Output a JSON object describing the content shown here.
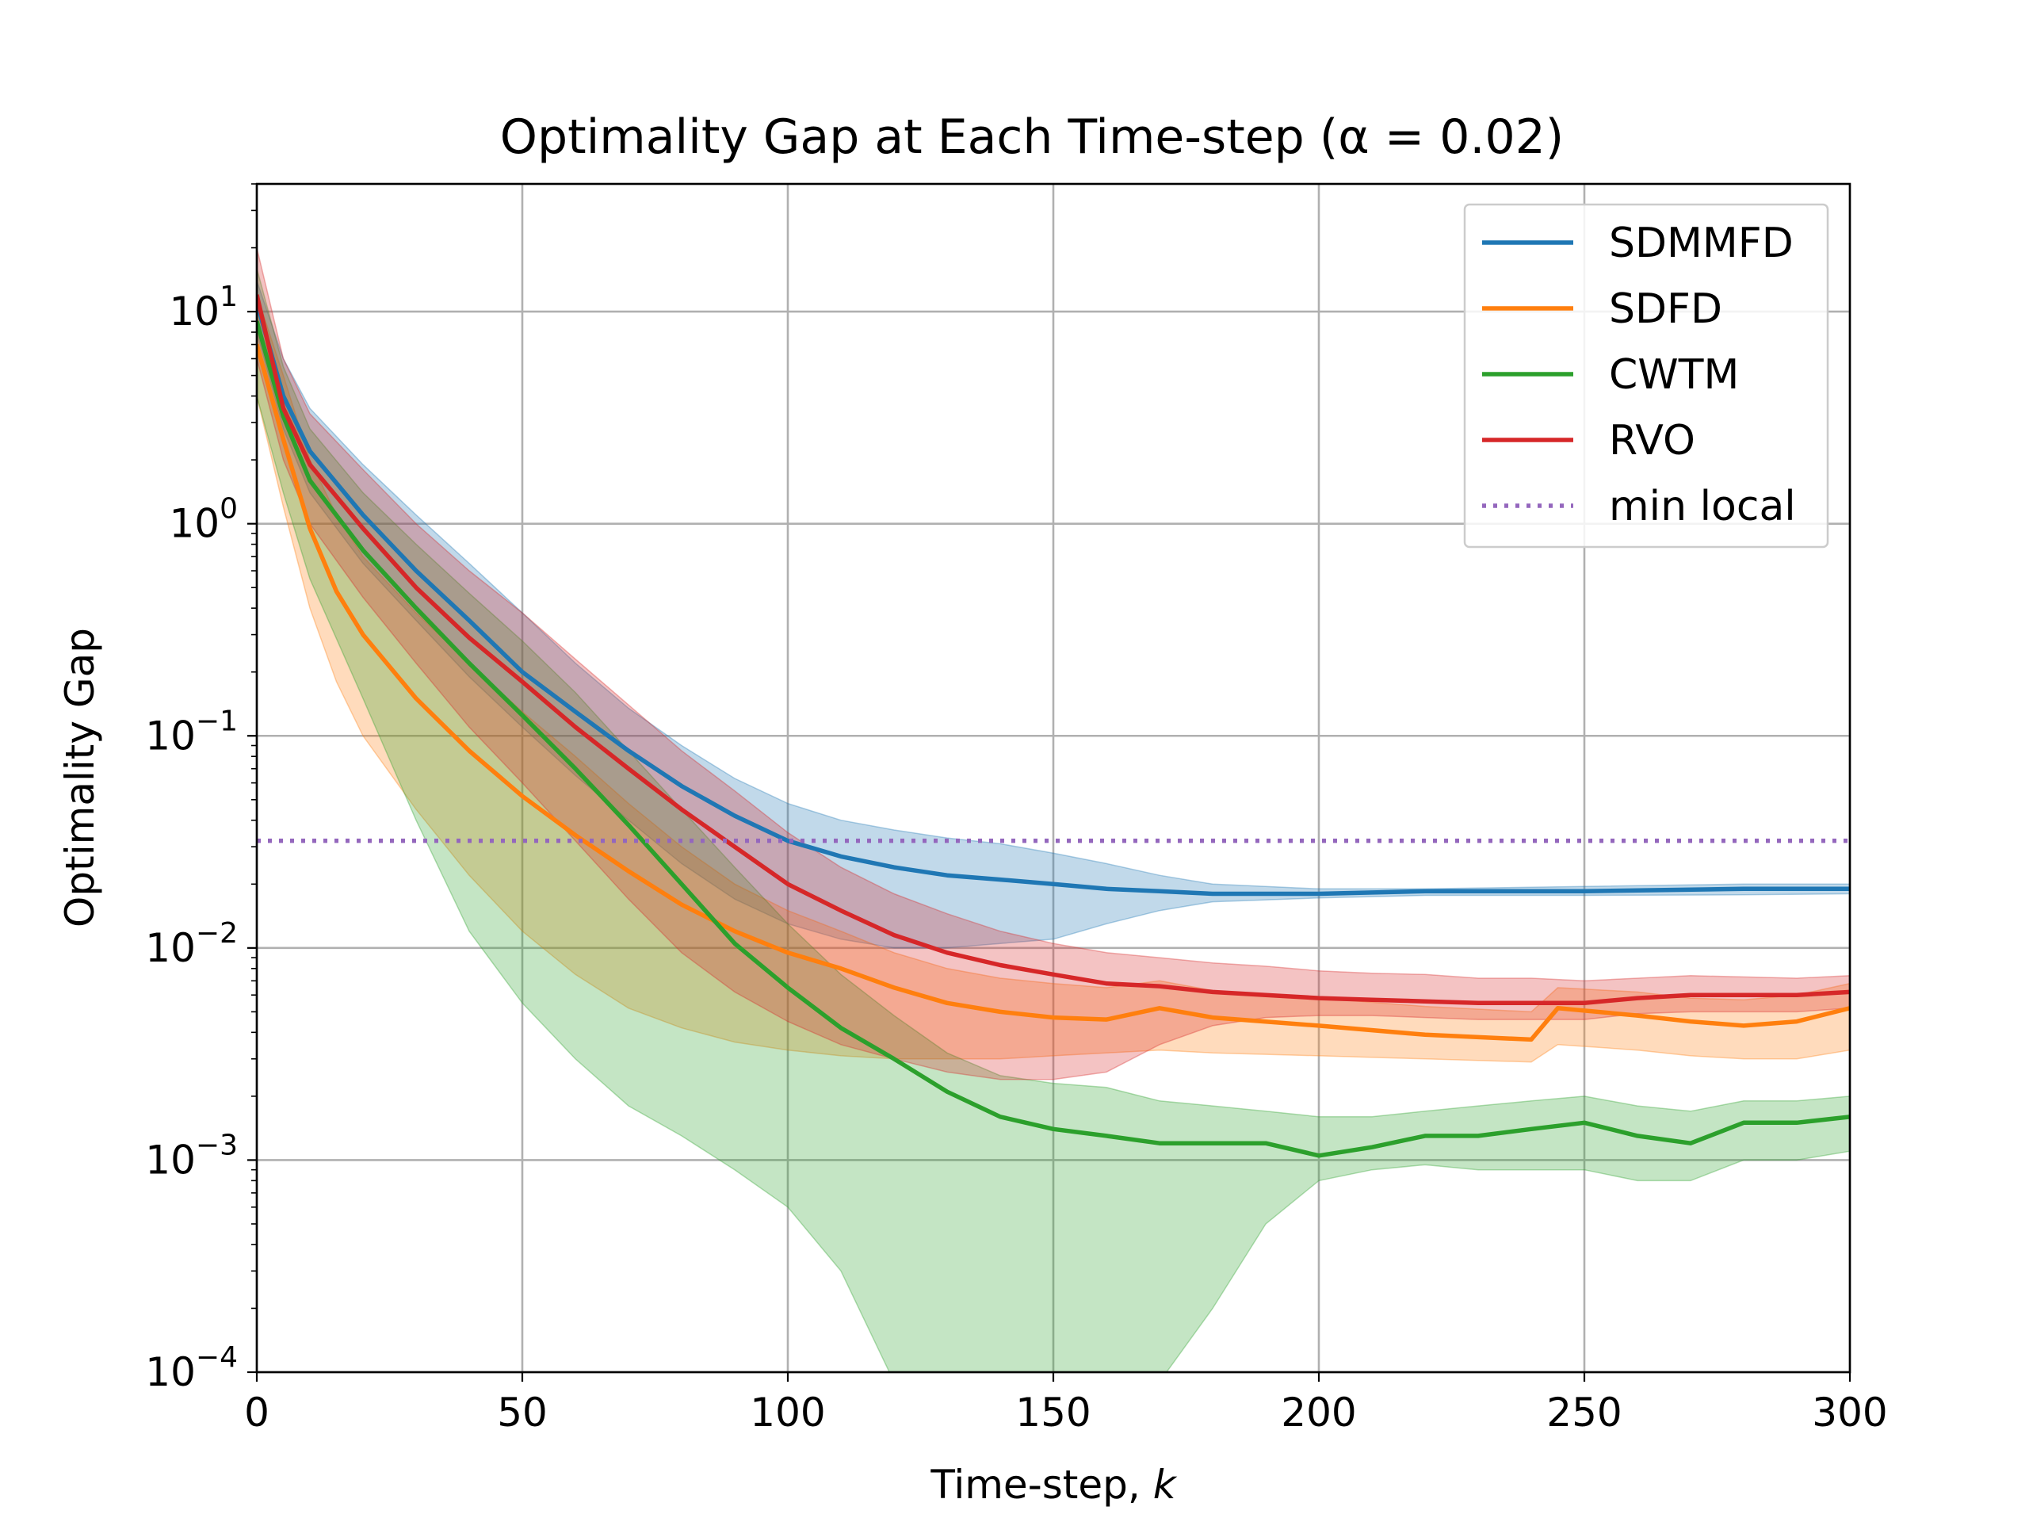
{
  "chart_data": {
    "type": "line",
    "title": "Optimality Gap at Each Time-step (α = 0.02)",
    "xlabel": "Time-step, k",
    "ylabel": "Optimality Gap",
    "xlim": [
      0,
      300
    ],
    "ylim": [
      0.0001,
      40
    ],
    "y_scale": "log",
    "grid": true,
    "legend_position": "top-right",
    "x_ticks": [
      0,
      50,
      100,
      150,
      200,
      250,
      300
    ],
    "y_ticks": [
      0.0001,
      0.001,
      0.01,
      0.1,
      1,
      10
    ],
    "y_tick_labels": [
      {
        "base": "10",
        "exp": "−4"
      },
      {
        "base": "10",
        "exp": "−3"
      },
      {
        "base": "10",
        "exp": "−2"
      },
      {
        "base": "10",
        "exp": "−1"
      },
      {
        "base": "10",
        "exp": "0"
      },
      {
        "base": "10",
        "exp": "1"
      }
    ],
    "series": [
      {
        "name": "SDMMFD",
        "color": "#1f77b4",
        "x": [
          0,
          5,
          10,
          20,
          30,
          40,
          50,
          60,
          70,
          80,
          90,
          100,
          110,
          120,
          130,
          140,
          150,
          160,
          170,
          180,
          200,
          220,
          250,
          280,
          300
        ],
        "mean": [
          11,
          4,
          2.2,
          1.1,
          0.6,
          0.35,
          0.2,
          0.13,
          0.085,
          0.058,
          0.042,
          0.032,
          0.027,
          0.024,
          0.022,
          0.021,
          0.02,
          0.019,
          0.0185,
          0.018,
          0.018,
          0.0185,
          0.0185,
          0.019,
          0.019
        ],
        "upper": [
          14,
          6,
          3.5,
          1.9,
          1.1,
          0.65,
          0.38,
          0.22,
          0.135,
          0.09,
          0.063,
          0.048,
          0.04,
          0.036,
          0.033,
          0.031,
          0.028,
          0.025,
          0.022,
          0.02,
          0.019,
          0.019,
          0.0195,
          0.02,
          0.02
        ],
        "lower": [
          8,
          2.8,
          1.4,
          0.65,
          0.35,
          0.19,
          0.11,
          0.065,
          0.04,
          0.025,
          0.017,
          0.013,
          0.011,
          0.01,
          0.01,
          0.0105,
          0.011,
          0.013,
          0.015,
          0.0165,
          0.0172,
          0.0177,
          0.0177,
          0.0178,
          0.018
        ]
      },
      {
        "name": "SDFD",
        "color": "#ff7f0e",
        "x": [
          0,
          5,
          10,
          15,
          20,
          30,
          40,
          50,
          60,
          70,
          80,
          90,
          100,
          110,
          120,
          130,
          140,
          150,
          160,
          170,
          180,
          200,
          220,
          240,
          245,
          260,
          270,
          280,
          290,
          300
        ],
        "mean": [
          7,
          2.5,
          0.95,
          0.48,
          0.3,
          0.15,
          0.085,
          0.052,
          0.034,
          0.023,
          0.016,
          0.012,
          0.0095,
          0.008,
          0.0065,
          0.0055,
          0.005,
          0.0047,
          0.0046,
          0.0052,
          0.0047,
          0.0043,
          0.0039,
          0.0037,
          0.0052,
          0.0048,
          0.0045,
          0.0043,
          0.0045,
          0.0052
        ],
        "upper": [
          12,
          5,
          2,
          1.1,
          0.7,
          0.38,
          0.22,
          0.13,
          0.08,
          0.048,
          0.03,
          0.02,
          0.015,
          0.012,
          0.0095,
          0.008,
          0.0072,
          0.0068,
          0.0065,
          0.007,
          0.0063,
          0.0058,
          0.0053,
          0.005,
          0.0065,
          0.0062,
          0.0058,
          0.0057,
          0.006,
          0.0068
        ],
        "lower": [
          4,
          1.2,
          0.4,
          0.18,
          0.1,
          0.045,
          0.022,
          0.012,
          0.0075,
          0.0052,
          0.0042,
          0.0036,
          0.0033,
          0.0031,
          0.003,
          0.003,
          0.003,
          0.0031,
          0.0032,
          0.0033,
          0.0032,
          0.0031,
          0.003,
          0.0029,
          0.0035,
          0.0033,
          0.0031,
          0.003,
          0.003,
          0.0033
        ]
      },
      {
        "name": "CWTM",
        "color": "#2ca02c",
        "x": [
          0,
          5,
          10,
          20,
          30,
          40,
          50,
          60,
          70,
          80,
          90,
          100,
          110,
          120,
          130,
          140,
          150,
          160,
          170,
          180,
          190,
          200,
          210,
          220,
          230,
          240,
          250,
          260,
          270,
          280,
          290,
          300
        ],
        "mean": [
          9,
          3.2,
          1.6,
          0.75,
          0.4,
          0.22,
          0.125,
          0.07,
          0.038,
          0.02,
          0.0105,
          0.0065,
          0.0042,
          0.003,
          0.0021,
          0.0016,
          0.0014,
          0.0013,
          0.0012,
          0.0012,
          0.0012,
          0.00105,
          0.00115,
          0.0013,
          0.0013,
          0.0014,
          0.0015,
          0.0013,
          0.0012,
          0.0015,
          0.0015,
          0.0016
        ],
        "upper": [
          16,
          5.5,
          2.8,
          1.4,
          0.8,
          0.47,
          0.28,
          0.16,
          0.085,
          0.045,
          0.024,
          0.013,
          0.0075,
          0.0048,
          0.0032,
          0.0025,
          0.0023,
          0.0022,
          0.0019,
          0.0018,
          0.0017,
          0.0016,
          0.0016,
          0.0017,
          0.0018,
          0.0019,
          0.002,
          0.0018,
          0.0017,
          0.0019,
          0.0019,
          0.002
        ],
        "lower": [
          4,
          1.4,
          0.55,
          0.15,
          0.04,
          0.012,
          0.0055,
          0.003,
          0.0018,
          0.0013,
          0.0009,
          0.0006,
          0.0003,
          9e-05,
          9e-05,
          9e-05,
          9e-05,
          9e-05,
          9e-05,
          0.0002,
          0.0005,
          0.0008,
          0.0009,
          0.00095,
          0.0009,
          0.0009,
          0.0009,
          0.0008,
          0.0008,
          0.001,
          0.001,
          0.0011
        ]
      },
      {
        "name": "RVO",
        "color": "#d62728",
        "x": [
          0,
          5,
          10,
          20,
          30,
          40,
          50,
          60,
          70,
          80,
          90,
          100,
          110,
          120,
          130,
          140,
          150,
          160,
          170,
          180,
          190,
          200,
          210,
          220,
          230,
          240,
          250,
          260,
          270,
          280,
          290,
          300
        ],
        "mean": [
          12,
          3.5,
          1.9,
          0.95,
          0.5,
          0.29,
          0.18,
          0.11,
          0.07,
          0.045,
          0.03,
          0.02,
          0.015,
          0.0115,
          0.0095,
          0.0083,
          0.0075,
          0.0068,
          0.0066,
          0.0062,
          0.006,
          0.0058,
          0.0057,
          0.0056,
          0.0055,
          0.0055,
          0.0055,
          0.0058,
          0.006,
          0.006,
          0.006,
          0.0062
        ],
        "upper": [
          20,
          6,
          3.3,
          1.8,
          1.0,
          0.6,
          0.38,
          0.23,
          0.14,
          0.085,
          0.055,
          0.035,
          0.024,
          0.018,
          0.0145,
          0.012,
          0.0105,
          0.0095,
          0.009,
          0.0085,
          0.0082,
          0.0078,
          0.0076,
          0.0075,
          0.0072,
          0.0072,
          0.007,
          0.0072,
          0.0074,
          0.0073,
          0.0072,
          0.0074
        ],
        "lower": [
          6,
          2.0,
          1.0,
          0.45,
          0.22,
          0.11,
          0.06,
          0.032,
          0.017,
          0.0095,
          0.0062,
          0.0045,
          0.0035,
          0.003,
          0.0026,
          0.0024,
          0.0024,
          0.0026,
          0.0035,
          0.0043,
          0.0047,
          0.0048,
          0.0048,
          0.0047,
          0.0046,
          0.0046,
          0.0046,
          0.0049,
          0.005,
          0.005,
          0.005,
          0.0052
        ]
      }
    ],
    "reference_line": {
      "name": "min local",
      "color": "#9467bd",
      "y": 0.032,
      "style": "dotted"
    }
  }
}
